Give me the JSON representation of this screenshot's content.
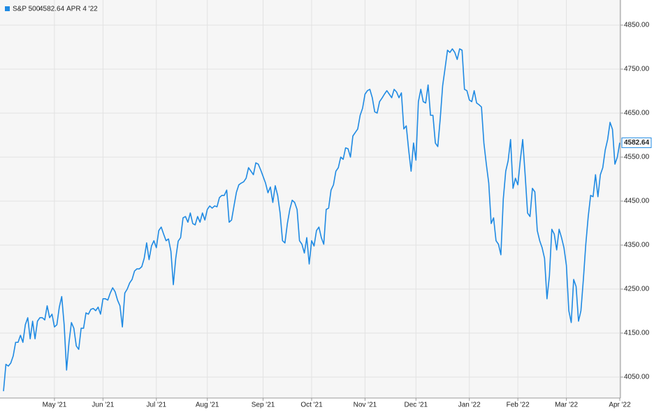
{
  "chart_data": {
    "type": "line",
    "last_date": "APR 4 '22",
    "series": [
      {
        "name": "S&P 500",
        "color": "#1f8ae3",
        "values": [
          4018,
          4079,
          4075,
          4082,
          4098,
          4129,
          4129,
          4145,
          4129,
          4169,
          4185,
          4137,
          4177,
          4137,
          4177,
          4185,
          4185,
          4180,
          4212,
          4185,
          4193,
          4164,
          4169,
          4209,
          4233,
          4169,
          4066,
          4129,
          4174,
          4161,
          4121,
          4113,
          4161,
          4161,
          4196,
          4193,
          4204,
          4206,
          4201,
          4209,
          4193,
          4228,
          4228,
          4225,
          4241,
          4253,
          4244,
          4225,
          4212,
          4164,
          4241,
          4250,
          4264,
          4272,
          4291,
          4296,
          4296,
          4301,
          4320,
          4355,
          4317,
          4348,
          4360,
          4344,
          4383,
          4391,
          4375,
          4360,
          4364,
          4336,
          4260,
          4320,
          4359,
          4367,
          4412,
          4415,
          4402,
          4423,
          4399,
          4396,
          4415,
          4402,
          4423,
          4407,
          4431,
          4439,
          4434,
          4439,
          4437,
          4458,
          4463,
          4463,
          4475,
          4402,
          4407,
          4439,
          4470,
          4487,
          4491,
          4494,
          4502,
          4526,
          4518,
          4510,
          4537,
          4534,
          4521,
          4506,
          4491,
          4469,
          4482,
          4447,
          4485,
          4463,
          4423,
          4360,
          4355,
          4399,
          4431,
          4452,
          4447,
          4431,
          4360,
          4352,
          4332,
          4367,
          4307,
          4360,
          4348,
          4383,
          4391,
          4367,
          4352,
          4431,
          4434,
          4475,
          4487,
          4518,
          4526,
          4550,
          4545,
          4571,
          4569,
          4550,
          4598,
          4606,
          4614,
          4645,
          4661,
          4693,
          4701,
          4704,
          4685,
          4653,
          4650,
          4676,
          4684,
          4693,
          4701,
          4693,
          4685,
          4704,
          4698,
          4685,
          4696,
          4614,
          4621,
          4566,
          4518,
          4582,
          4543,
          4676,
          4704,
          4676,
          4673,
          4714,
          4645,
          4645,
          4582,
          4574,
          4637,
          4712,
          4752,
          4793,
          4788,
          4796,
          4788,
          4772,
          4796,
          4793,
          4704,
          4701,
          4680,
          4676,
          4701,
          4673,
          4669,
          4664,
          4582,
          4534,
          4491,
          4399,
          4412,
          4360,
          4352,
          4328,
          4455,
          4518,
          4542,
          4590,
          4479,
          4502,
          4487,
          4543,
          4590,
          4510,
          4423,
          4415,
          4479,
          4471,
          4383,
          4360,
          4344,
          4320,
          4228,
          4280,
          4386,
          4375,
          4339,
          4386,
          4367,
          4344,
          4304,
          4201,
          4174,
          4272,
          4256,
          4177,
          4201,
          4272,
          4352,
          4415,
          4463,
          4460,
          4510,
          4460,
          4510,
          4526,
          4566,
          4590,
          4629,
          4613,
          4534,
          4550,
          4582.64
        ]
      }
    ],
    "xlim": [
      0,
      254
    ],
    "xticks": [
      {
        "value": 21,
        "label": "May '21"
      },
      {
        "value": 41,
        "label": "Jun '21"
      },
      {
        "value": 63,
        "label": "Jul '21"
      },
      {
        "value": 84,
        "label": "Aug '21"
      },
      {
        "value": 107,
        "label": "Sep '21"
      },
      {
        "value": 127,
        "label": "Oct '21"
      },
      {
        "value": 149,
        "label": "Nov '21"
      },
      {
        "value": 170,
        "label": "Dec '21"
      },
      {
        "value": 192,
        "label": "Jan '22"
      },
      {
        "value": 212,
        "label": "Feb '22"
      },
      {
        "value": 232,
        "label": "Mar '22"
      },
      {
        "value": 254,
        "label": "Apr '22"
      }
    ],
    "ylim": [
      4002.4,
      4907.1
    ],
    "yticks": [
      {
        "value": 4050,
        "label": "4050.00"
      },
      {
        "value": 4150,
        "label": "4150.00"
      },
      {
        "value": 4250,
        "label": "4250.00"
      },
      {
        "value": 4350,
        "label": "4350.00"
      },
      {
        "value": 4450,
        "label": "4450.00"
      },
      {
        "value": 4550,
        "label": "4550.00"
      },
      {
        "value": 4650,
        "label": "4650.00"
      },
      {
        "value": 4750,
        "label": "4750.00"
      },
      {
        "value": 4850,
        "label": "4850.00"
      }
    ],
    "grid": true
  }
}
